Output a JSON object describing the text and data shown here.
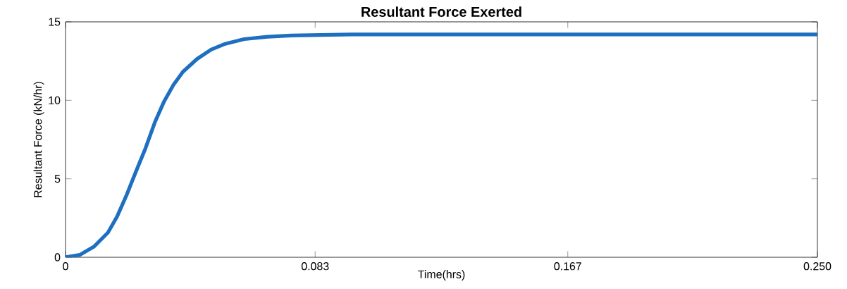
{
  "chart_data": {
    "type": "line",
    "title": "Resultant Force Exerted",
    "xlabel": "Time(hrs)",
    "ylabel": "Resultant Force (kN/hr)",
    "x": [
      0,
      0.0047,
      0.0094,
      0.0141,
      0.0172,
      0.0203,
      0.0234,
      0.0266,
      0.0297,
      0.0328,
      0.0359,
      0.039,
      0.0437,
      0.0484,
      0.0531,
      0.0594,
      0.0672,
      0.075,
      0.095,
      0.25
    ],
    "series": [
      {
        "color": "#1f6fc0",
        "values": [
          0,
          0.15,
          0.67,
          1.57,
          2.62,
          3.96,
          5.46,
          6.95,
          8.6,
          9.94,
          10.99,
          11.81,
          12.63,
          13.23,
          13.6,
          13.9,
          14.05,
          14.13,
          14.2,
          14.2
        ]
      }
    ],
    "xlim": [
      0,
      0.25
    ],
    "ylim": [
      0,
      15
    ],
    "xticks": [
      0,
      0.083,
      0.167,
      {
        "value": 0.25,
        "label": "0.250"
      }
    ],
    "yticks": [
      0,
      5,
      10,
      15
    ],
    "grid": false,
    "marker": "none",
    "line_style": "solid"
  }
}
